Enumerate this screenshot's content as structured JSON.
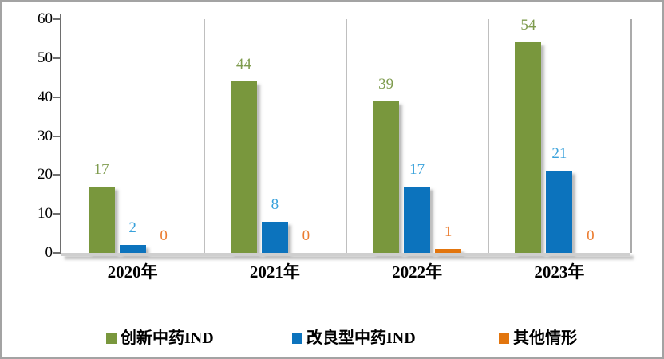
{
  "chart_data": {
    "type": "bar",
    "title": "",
    "xlabel": "",
    "ylabel": "",
    "categories": [
      "2020年",
      "2021年",
      "2022年",
      "2023年"
    ],
    "series": [
      {
        "name": "创新中药IND",
        "color": "#79973d",
        "label_color": "#7f9c4f",
        "values": [
          17,
          44,
          39,
          54
        ]
      },
      {
        "name": "改良型中药IND",
        "color": "#0c73bd",
        "label_color": "#38a1db",
        "values": [
          2,
          8,
          17,
          21
        ]
      },
      {
        "name": "其他情形",
        "color": "#e2750e",
        "label_color": "#eb7c30",
        "values": [
          0,
          0,
          1,
          0
        ]
      }
    ],
    "ylim": [
      0,
      60
    ],
    "yticks": [
      0,
      10,
      20,
      30,
      40,
      50,
      60
    ],
    "grid": "vertical-category-separators",
    "legend_position": "bottom",
    "data_labels": "above-bars"
  }
}
